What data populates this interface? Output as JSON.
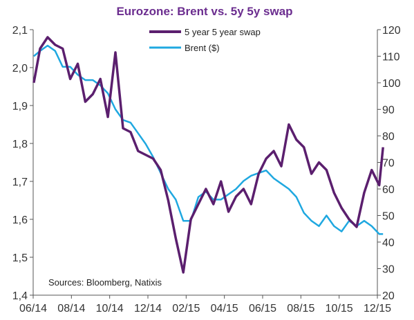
{
  "chart_data": {
    "type": "line",
    "title": "Eurozone: Brent vs. 5y 5y swap",
    "note": "Sources:  Bloomberg, Natixis",
    "x_tick_labels": [
      "06/14",
      "08/14",
      "10/14",
      "12/14",
      "02/15",
      "04/15",
      "06/15",
      "08/15",
      "10/15",
      "12/15"
    ],
    "x_range": [
      "2014-06",
      "2015-12"
    ],
    "left_axis": {
      "ylim": [
        1.4,
        2.1
      ],
      "tick_labels": [
        "1,4",
        "1,5",
        "1,6",
        "1,7",
        "1,8",
        "1,9",
        "2,0",
        "2,1"
      ]
    },
    "right_axis": {
      "ylim": [
        20,
        120
      ],
      "tick_labels": [
        "20",
        "30",
        "40",
        "50",
        "60",
        "70",
        "80",
        "90",
        "100",
        "110",
        "120"
      ]
    },
    "legend": {
      "position": "top-center"
    },
    "grid": false,
    "series": [
      {
        "name": "5 year 5 year swap",
        "axis": "left",
        "color": "#5b1f6e",
        "x": [
          "2014-06-02",
          "2014-06-12",
          "2014-06-24",
          "2014-07-06",
          "2014-07-18",
          "2014-07-30",
          "2014-08-11",
          "2014-08-23",
          "2014-09-04",
          "2014-09-16",
          "2014-09-28",
          "2014-10-10",
          "2014-10-22",
          "2014-11-03",
          "2014-11-15",
          "2014-11-27",
          "2014-12-09",
          "2014-12-21",
          "2015-01-02",
          "2015-01-14",
          "2015-01-26",
          "2015-02-07",
          "2015-02-19",
          "2015-03-03",
          "2015-03-15",
          "2015-03-27",
          "2015-04-08",
          "2015-04-20",
          "2015-05-02",
          "2015-05-14",
          "2015-05-26",
          "2015-06-07",
          "2015-06-19",
          "2015-07-01",
          "2015-07-13",
          "2015-07-25",
          "2015-08-06",
          "2015-08-18",
          "2015-08-30",
          "2015-09-11",
          "2015-09-23",
          "2015-10-05",
          "2015-10-17",
          "2015-10-29",
          "2015-11-10",
          "2015-11-22",
          "2015-12-04",
          "2015-12-10"
        ],
        "values": [
          1.96,
          2.05,
          2.08,
          2.06,
          2.05,
          1.97,
          2.01,
          1.91,
          1.93,
          1.97,
          1.87,
          2.04,
          1.84,
          1.83,
          1.78,
          1.77,
          1.76,
          1.73,
          1.65,
          1.55,
          1.46,
          1.6,
          1.64,
          1.68,
          1.64,
          1.7,
          1.62,
          1.66,
          1.68,
          1.64,
          1.72,
          1.76,
          1.78,
          1.74,
          1.85,
          1.81,
          1.79,
          1.72,
          1.75,
          1.73,
          1.67,
          1.63,
          1.6,
          1.58,
          1.67,
          1.73,
          1.69,
          1.79
        ]
      },
      {
        "name": "Brent ($)",
        "axis": "right",
        "color": "#1fa8e0",
        "x": [
          "2014-06-02",
          "2014-06-12",
          "2014-06-24",
          "2014-07-06",
          "2014-07-18",
          "2014-07-30",
          "2014-08-11",
          "2014-08-23",
          "2014-09-04",
          "2014-09-16",
          "2014-09-28",
          "2014-10-10",
          "2014-10-22",
          "2014-11-03",
          "2014-11-15",
          "2014-11-27",
          "2014-12-09",
          "2014-12-21",
          "2015-01-02",
          "2015-01-14",
          "2015-01-26",
          "2015-02-07",
          "2015-02-19",
          "2015-03-03",
          "2015-03-15",
          "2015-03-27",
          "2015-04-08",
          "2015-04-20",
          "2015-05-02",
          "2015-05-14",
          "2015-05-26",
          "2015-06-07",
          "2015-06-19",
          "2015-07-01",
          "2015-07-13",
          "2015-07-25",
          "2015-08-06",
          "2015-08-18",
          "2015-08-30",
          "2015-09-11",
          "2015-09-23",
          "2015-10-05",
          "2015-10-17",
          "2015-10-29",
          "2015-11-10",
          "2015-11-22",
          "2015-12-04",
          "2015-12-10"
        ],
        "values": [
          110,
          112,
          114,
          112,
          106,
          106,
          103,
          101,
          101,
          99,
          96,
          90,
          86,
          85,
          81,
          77,
          72,
          66,
          60,
          56,
          48,
          48,
          57,
          59,
          56,
          56,
          58,
          60,
          63,
          65,
          66,
          67,
          64,
          62,
          60,
          57,
          51,
          48,
          46,
          50,
          46,
          44,
          48,
          46,
          48,
          46,
          43,
          43
        ]
      }
    ]
  }
}
